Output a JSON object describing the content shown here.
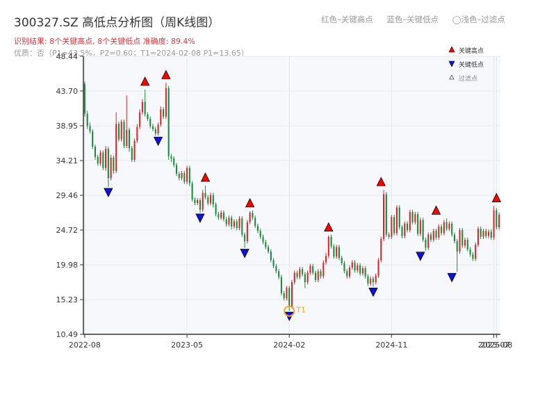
{
  "header": {
    "title": "300327.SZ 高低点分析图（周K线图）",
    "result_text": "识别结果: 8个关键高点, 8个关键低点  准确度: 89.4%",
    "quality_text": "优质：否（P1=43.5%，P2=0.60；T1=2024-02-08 P1=13.65）",
    "legend_red": "红色–关键高点",
    "legend_blue": "蓝色–关键低点",
    "legend_light": "◯浅色–过滤点"
  },
  "colors": {
    "up": "#d62728",
    "down": "#1a8a3a",
    "high_marker": "#ff0000",
    "low_marker": "#1010e0",
    "t1": "#f5a623",
    "axis": "#333333",
    "grid": "#e3e8ef",
    "plot_bg": "#f6f8fb"
  },
  "chart_data": {
    "type": "candlestick",
    "y_ticks": [
      "10.49",
      "15.23",
      "19.98",
      "24.72",
      "29.46",
      "34.21",
      "38.95",
      "43.70",
      "48.44"
    ],
    "ylim": [
      10.49,
      48.44
    ],
    "x_ticks": [
      {
        "label": "2022-08",
        "t": 0
      },
      {
        "label": "2023-05",
        "t": 39
      },
      {
        "label": "2024-02",
        "t": 78
      },
      {
        "label": "2024-11",
        "t": 117
      },
      {
        "label": "2025-07",
        "t": 156
      },
      {
        "label": "2025-08",
        "t": 157
      }
    ],
    "t_range": [
      -0.5,
      158.5
    ],
    "legend": [
      {
        "label": "关键高点",
        "marker": "up"
      },
      {
        "label": "关键低点",
        "marker": "down"
      },
      {
        "label": "过滤点",
        "marker": "small-up"
      }
    ],
    "key_highs": [
      {
        "t": 23,
        "price": 43.9
      },
      {
        "t": 31,
        "price": 44.8
      },
      {
        "t": 46,
        "price": 30.8
      },
      {
        "t": 63,
        "price": 27.3
      },
      {
        "t": 93,
        "price": 24.0
      },
      {
        "t": 113,
        "price": 30.2
      },
      {
        "t": 134,
        "price": 26.3
      },
      {
        "t": 157,
        "price": 28.0
      }
    ],
    "key_lows": [
      {
        "t": 9,
        "price": 30.6
      },
      {
        "t": 28,
        "price": 37.6
      },
      {
        "t": 44,
        "price": 27.1
      },
      {
        "t": 61,
        "price": 22.3
      },
      {
        "t": 78,
        "price": 13.7
      },
      {
        "t": 110,
        "price": 17.0
      },
      {
        "t": 128,
        "price": 21.9
      },
      {
        "t": 140,
        "price": 19.0
      }
    ],
    "t1_marker": {
      "label": "T1",
      "t": 78,
      "price": 13.65
    },
    "candles": [
      [
        44.7,
        40.6,
        45.0,
        40.2
      ],
      [
        40.6,
        38.9,
        41.0,
        38.5
      ],
      [
        38.9,
        38.2,
        39.4,
        37.9
      ],
      [
        38.2,
        36.1,
        38.5,
        35.8
      ],
      [
        36.1,
        34.7,
        36.4,
        34.3
      ],
      [
        34.7,
        33.8,
        35.0,
        33.5
      ],
      [
        33.8,
        35.3,
        35.6,
        33.5
      ],
      [
        35.3,
        33.2,
        35.6,
        32.9
      ],
      [
        33.2,
        35.8,
        36.2,
        32.8
      ],
      [
        35.8,
        31.8,
        36.1,
        30.6
      ],
      [
        31.8,
        34.6,
        35.0,
        31.5
      ],
      [
        34.6,
        32.8,
        34.9,
        32.4
      ],
      [
        32.8,
        39.2,
        40.8,
        32.5
      ],
      [
        39.2,
        37.1,
        39.5,
        36.8
      ],
      [
        37.1,
        39.5,
        39.8,
        36.8
      ],
      [
        39.5,
        36.2,
        39.8,
        35.9
      ],
      [
        36.2,
        38.4,
        43.1,
        35.9
      ],
      [
        38.4,
        35.9,
        38.7,
        35.4
      ],
      [
        35.9,
        34.3,
        36.2,
        34.0
      ],
      [
        34.3,
        36.9,
        37.2,
        34.0
      ],
      [
        36.9,
        38.8,
        39.2,
        36.6
      ],
      [
        38.8,
        40.8,
        41.2,
        38.5
      ],
      [
        40.8,
        42.2,
        42.6,
        40.5
      ],
      [
        42.2,
        40.5,
        43.9,
        40.2
      ],
      [
        40.5,
        39.9,
        40.8,
        39.6
      ],
      [
        39.9,
        38.9,
        40.2,
        38.6
      ],
      [
        38.9,
        38.5,
        39.2,
        38.2
      ],
      [
        38.5,
        37.9,
        38.8,
        37.6
      ],
      [
        37.9,
        39.1,
        39.4,
        37.6
      ],
      [
        39.1,
        41.2,
        41.6,
        38.8
      ],
      [
        41.2,
        40.2,
        41.5,
        39.9
      ],
      [
        40.2,
        44.1,
        44.8,
        39.9
      ],
      [
        44.1,
        34.8,
        44.4,
        34.3
      ],
      [
        34.8,
        34.5,
        35.1,
        34.0
      ],
      [
        34.5,
        33.6,
        34.8,
        33.3
      ],
      [
        33.6,
        32.4,
        33.9,
        32.1
      ],
      [
        32.4,
        31.8,
        32.7,
        31.5
      ],
      [
        31.8,
        32.5,
        32.8,
        31.5
      ],
      [
        32.5,
        31.3,
        32.8,
        31.0
      ],
      [
        31.3,
        33.2,
        33.5,
        31.0
      ],
      [
        33.2,
        31.1,
        33.5,
        30.7
      ],
      [
        31.1,
        28.9,
        31.4,
        28.6
      ],
      [
        28.9,
        28.4,
        29.2,
        28.1
      ],
      [
        28.4,
        28.8,
        29.1,
        28.1
      ],
      [
        28.8,
        27.5,
        29.1,
        27.1
      ],
      [
        27.5,
        29.8,
        30.2,
        27.2
      ],
      [
        29.8,
        29.2,
        30.8,
        28.9
      ],
      [
        29.2,
        28.4,
        29.5,
        28.1
      ],
      [
        28.4,
        29.5,
        29.8,
        28.1
      ],
      [
        29.5,
        28.2,
        29.8,
        27.8
      ],
      [
        28.2,
        26.9,
        28.5,
        26.6
      ],
      [
        26.9,
        26.4,
        27.2,
        26.1
      ],
      [
        26.4,
        27.1,
        27.4,
        26.1
      ],
      [
        27.1,
        26.2,
        27.4,
        25.9
      ],
      [
        26.2,
        25.5,
        26.5,
        25.2
      ],
      [
        25.5,
        26.4,
        26.7,
        25.2
      ],
      [
        26.4,
        25.2,
        26.7,
        24.8
      ],
      [
        25.2,
        25.9,
        26.2,
        24.9
      ],
      [
        25.9,
        25.0,
        26.2,
        24.7
      ],
      [
        25.0,
        26.3,
        26.6,
        24.7
      ],
      [
        26.3,
        24.1,
        26.6,
        23.8
      ],
      [
        24.1,
        23.2,
        24.4,
        22.3
      ],
      [
        23.2,
        25.8,
        26.1,
        22.9
      ],
      [
        25.8,
        27.1,
        27.3,
        25.5
      ],
      [
        27.1,
        26.4,
        27.4,
        26.1
      ],
      [
        26.4,
        25.3,
        26.7,
        25.0
      ],
      [
        25.3,
        24.6,
        25.6,
        24.3
      ],
      [
        24.6,
        23.8,
        24.9,
        23.5
      ],
      [
        23.8,
        23.1,
        24.1,
        22.8
      ],
      [
        23.1,
        22.4,
        23.4,
        22.1
      ],
      [
        22.4,
        21.8,
        22.7,
        21.5
      ],
      [
        21.8,
        20.6,
        22.1,
        20.3
      ],
      [
        20.6,
        19.8,
        20.9,
        19.5
      ],
      [
        19.8,
        19.1,
        20.1,
        18.8
      ],
      [
        19.1,
        18.3,
        19.4,
        18.0
      ],
      [
        18.3,
        16.1,
        18.6,
        15.8
      ],
      [
        16.1,
        15.4,
        16.4,
        15.1
      ],
      [
        15.4,
        16.8,
        17.1,
        15.1
      ],
      [
        16.8,
        14.3,
        17.1,
        13.7
      ],
      [
        14.3,
        17.6,
        17.9,
        14.0
      ],
      [
        17.6,
        18.9,
        19.2,
        17.3
      ],
      [
        18.9,
        18.3,
        19.2,
        18.0
      ],
      [
        18.3,
        19.4,
        19.7,
        18.0
      ],
      [
        19.4,
        18.7,
        19.7,
        18.4
      ],
      [
        18.7,
        17.6,
        19.0,
        16.8
      ],
      [
        17.6,
        18.9,
        19.2,
        17.3
      ],
      [
        18.9,
        19.8,
        20.1,
        18.6
      ],
      [
        19.8,
        18.9,
        20.1,
        18.6
      ],
      [
        18.9,
        17.9,
        19.2,
        17.6
      ],
      [
        17.9,
        19.1,
        19.4,
        17.6
      ],
      [
        19.1,
        18.4,
        19.4,
        18.1
      ],
      [
        18.4,
        20.3,
        20.6,
        18.1
      ],
      [
        20.3,
        21.2,
        21.6,
        20.0
      ],
      [
        21.2,
        23.8,
        24.0,
        20.9
      ],
      [
        23.8,
        22.5,
        24.1,
        22.2
      ],
      [
        22.5,
        21.1,
        22.8,
        20.8
      ],
      [
        21.1,
        22.4,
        22.7,
        20.8
      ],
      [
        22.4,
        20.9,
        22.7,
        20.6
      ],
      [
        20.9,
        20.2,
        21.2,
        19.9
      ],
      [
        20.2,
        19.1,
        20.5,
        18.8
      ],
      [
        19.1,
        18.4,
        19.4,
        18.1
      ],
      [
        18.4,
        19.6,
        19.9,
        18.1
      ],
      [
        19.6,
        20.3,
        20.6,
        19.3
      ],
      [
        20.3,
        19.2,
        20.6,
        18.9
      ],
      [
        19.2,
        19.9,
        20.2,
        18.9
      ],
      [
        19.9,
        18.8,
        20.2,
        18.5
      ],
      [
        18.8,
        19.5,
        19.8,
        18.5
      ],
      [
        19.5,
        18.4,
        19.8,
        18.1
      ],
      [
        18.4,
        17.4,
        18.7,
        17.1
      ],
      [
        17.4,
        18.1,
        18.4,
        17.1
      ],
      [
        18.1,
        17.6,
        18.4,
        17.0
      ],
      [
        17.6,
        18.5,
        18.8,
        17.3
      ],
      [
        18.5,
        20.6,
        20.9,
        18.2
      ],
      [
        20.6,
        23.5,
        23.8,
        20.3
      ],
      [
        23.5,
        29.6,
        30.2,
        23.2
      ],
      [
        29.6,
        24.1,
        29.9,
        23.8
      ],
      [
        24.1,
        23.8,
        24.4,
        23.5
      ],
      [
        23.8,
        26.5,
        26.8,
        23.5
      ],
      [
        26.5,
        24.3,
        26.8,
        24.0
      ],
      [
        24.3,
        27.8,
        28.1,
        24.0
      ],
      [
        27.8,
        25.1,
        28.1,
        24.8
      ],
      [
        25.1,
        23.9,
        25.4,
        23.6
      ],
      [
        23.9,
        25.6,
        25.9,
        23.6
      ],
      [
        25.6,
        24.7,
        25.9,
        24.4
      ],
      [
        24.7,
        27.2,
        27.5,
        24.4
      ],
      [
        27.2,
        25.8,
        27.5,
        25.5
      ],
      [
        25.8,
        26.9,
        27.2,
        25.5
      ],
      [
        26.9,
        24.2,
        27.2,
        23.9
      ],
      [
        24.2,
        26.1,
        26.4,
        23.9
      ],
      [
        26.1,
        23.4,
        26.4,
        23.1
      ],
      [
        23.4,
        22.3,
        23.7,
        21.9
      ],
      [
        22.3,
        24.1,
        24.4,
        22.0
      ],
      [
        24.1,
        23.4,
        24.4,
        23.1
      ],
      [
        23.4,
        24.6,
        24.9,
        23.1
      ],
      [
        24.6,
        23.7,
        24.9,
        23.4
      ],
      [
        23.7,
        25.2,
        25.5,
        23.4
      ],
      [
        25.2,
        24.3,
        25.5,
        24.0
      ],
      [
        24.3,
        25.8,
        26.1,
        24.0
      ],
      [
        25.8,
        24.9,
        26.3,
        24.6
      ],
      [
        24.9,
        25.6,
        25.9,
        24.6
      ],
      [
        25.6,
        24.1,
        25.9,
        23.8
      ],
      [
        24.1,
        23.2,
        24.4,
        22.9
      ],
      [
        23.2,
        21.8,
        23.5,
        19.0
      ],
      [
        21.8,
        24.7,
        25.0,
        21.5
      ],
      [
        24.7,
        22.6,
        25.0,
        22.3
      ],
      [
        22.6,
        23.4,
        23.7,
        22.3
      ],
      [
        23.4,
        22.1,
        23.7,
        21.8
      ],
      [
        22.1,
        21.4,
        22.4,
        21.1
      ],
      [
        21.4,
        20.8,
        21.7,
        20.5
      ],
      [
        20.8,
        22.7,
        23.0,
        20.5
      ],
      [
        22.7,
        24.9,
        25.2,
        22.4
      ],
      [
        24.9,
        23.8,
        25.2,
        23.5
      ],
      [
        23.8,
        24.6,
        24.9,
        23.5
      ],
      [
        24.6,
        23.9,
        24.9,
        23.6
      ],
      [
        23.9,
        24.5,
        24.8,
        23.6
      ],
      [
        24.5,
        23.7,
        24.8,
        23.4
      ],
      [
        23.7,
        27.4,
        28.0,
        23.4
      ],
      [
        27.4,
        25.1,
        27.7,
        24.8
      ],
      [
        25.1,
        26.8,
        27.1,
        24.8
      ]
    ]
  }
}
